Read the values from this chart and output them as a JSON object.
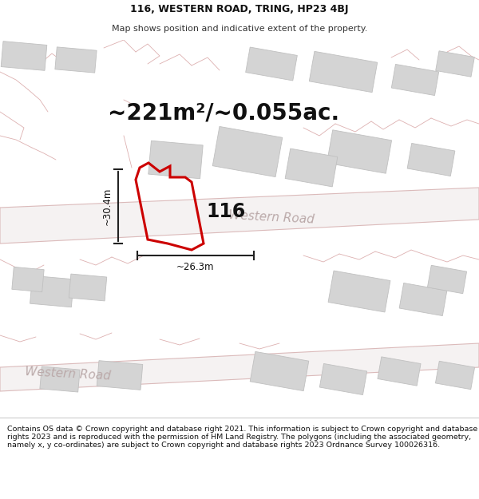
{
  "title_line1": "116, WESTERN ROAD, TRING, HP23 4BJ",
  "title_line2": "Map shows position and indicative extent of the property.",
  "area_text": "~221m²/~0.055ac.",
  "label_116": "116",
  "dim_height": "~30.4m",
  "dim_width": "~26.3m",
  "road_label1": "Western Road",
  "road_label2": "Western Road",
  "footer_text": "Contains OS data © Crown copyright and database right 2021. This information is subject to Crown copyright and database rights 2023 and is reproduced with the permission of HM Land Registry. The polygons (including the associated geometry, namely x, y co-ordinates) are subject to Crown copyright and database rights 2023 Ordnance Survey 100026316.",
  "plot_outline_color": "#cc0000",
  "map_bg": "#eeecec",
  "building_color": "#d4d4d4",
  "building_border": "#c0c0c0",
  "road_fill": "#f5f2f2",
  "road_edge": "#dbbaba",
  "faint_line_color": "#ddb0b0",
  "title_fontsize": 9,
  "subtitle_fontsize": 8,
  "area_fontsize": 20,
  "label_fontsize": 17,
  "dim_fontsize": 8.5,
  "road_label_fontsize": 11,
  "footer_fontsize": 6.8
}
